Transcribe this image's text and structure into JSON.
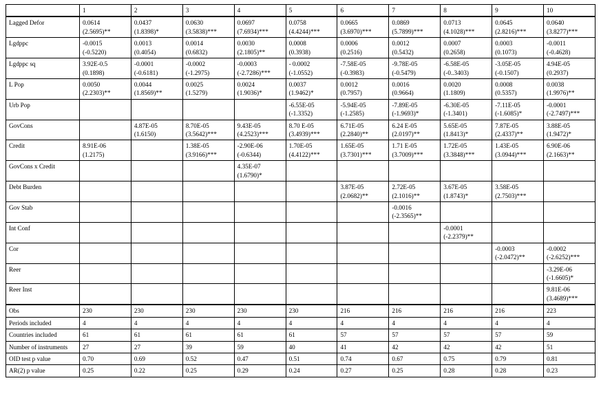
{
  "columns": [
    "1",
    "2",
    "3",
    "4",
    "5",
    "6",
    "7",
    "8",
    "9",
    "10"
  ],
  "variables": [
    {
      "name": "Lagged Defor",
      "cells": [
        {
          "v": "0.0614",
          "t": "(2.5695)**"
        },
        {
          "v": "0.0437",
          "t": "(1.8398)*"
        },
        {
          "v": "0.0630",
          "t": "(3.5838)***"
        },
        {
          "v": "0.0697",
          "t": "(7.6934)***"
        },
        {
          "v": "0.0758",
          "t": "(4.4244)***"
        },
        {
          "v": "0.0665",
          "t": "(3.6970)***"
        },
        {
          "v": "0.0869",
          "t": "(5.7899)***"
        },
        {
          "v": "0.0713",
          "t": "(4.1028)***"
        },
        {
          "v": "0.0645",
          "t": "(2.8216)***"
        },
        {
          "v": "0.0640",
          "t": "(3.8277)***"
        }
      ]
    },
    {
      "name": "Lgdppc",
      "cells": [
        {
          "v": "-0.0015",
          "t": "(-0.5220)"
        },
        {
          "v": "0.0013",
          "t": "(0.4054)"
        },
        {
          "v": "0.0014",
          "t": "(0.6832)"
        },
        {
          "v": "0.0030",
          "t": "(2.1805)**"
        },
        {
          "v": "0.0008",
          "t": "(0.3938)"
        },
        {
          "v": "0.0006",
          "t": "(0.2516)"
        },
        {
          "v": "0.0012",
          "t": "(0.5432)"
        },
        {
          "v": "0.0007",
          "t": "(0.2658)"
        },
        {
          "v": "0.0003",
          "t": "(0.1073)"
        },
        {
          "v": "-0.0011",
          "t": "(-0.4628)"
        }
      ]
    },
    {
      "name": "Lgdppc sq",
      "cells": [
        {
          "v": "3.92E-0.5",
          "t": "(0.1898)"
        },
        {
          "v": "-0.0001",
          "t": "(-0.6181)"
        },
        {
          "v": "-0.0002",
          "t": "(-1.2975)"
        },
        {
          "v": "-0.0003",
          "t": "(-2.7286)***"
        },
        {
          "v": "- 0.0002",
          "t": "(-1.0552)"
        },
        {
          "v": "-7.58E-05",
          "t": "(-0.3983)"
        },
        {
          "v": "-9.78E-05",
          "t": "(-0.5479)"
        },
        {
          "v": "-6.58E-05",
          "t": "(-0..3403)"
        },
        {
          "v": "-3.05E-05",
          "t": "(-0.1507)"
        },
        {
          "v": "4.94E-05",
          "t": "(0.2937)"
        }
      ]
    },
    {
      "name": "L Pop",
      "cells": [
        {
          "v": "0.0050",
          "t": "(2.2303)**"
        },
        {
          "v": "0.0044",
          "t": "(1.8569)**"
        },
        {
          "v": "0.0025",
          "t": "(1.5279)"
        },
        {
          "v": "0.0024",
          "t": "(1.9036)*"
        },
        {
          "v": "0.0037",
          "t": "(1.9462)*"
        },
        {
          "v": "0.0012",
          "t": "(0.7957)"
        },
        {
          "v": "0.0016",
          "t": "(0.9664)"
        },
        {
          "v": "0.0020",
          "t": "(1.1809)"
        },
        {
          "v": "0.0008",
          "t": "(0.5357)"
        },
        {
          "v": "0.0038",
          "t": "(1.9976)**"
        }
      ]
    },
    {
      "name": "Urb Pop",
      "cells": [
        null,
        null,
        null,
        null,
        {
          "v": "-6.55E-05",
          "t": "(-1.3352)"
        },
        {
          "v": "-5.94E-05",
          "t": "(-1.2585)"
        },
        {
          "v": "-7.89E-05",
          "t": "(-1.9693)*"
        },
        {
          "v": "-6.30E-05",
          "t": "(-1.3401)"
        },
        {
          "v": "-7.11E-05",
          "t": "(-1.6085)*"
        },
        {
          "v": "-0.0001",
          "t": "(-2.7497)***"
        }
      ]
    },
    {
      "name": "GovCons",
      "cells": [
        null,
        {
          "v": "4.87E-05",
          "t": "(1.6150)"
        },
        {
          "v": "8.70E-05",
          "t": "(3.5642)***"
        },
        {
          "v": "9.43E-05",
          "t": "(4.2523)***"
        },
        {
          "v": "8.70 E-05",
          "t": "(3.4939)***"
        },
        {
          "v": "6.71E-05",
          "t": "(2.2840)**"
        },
        {
          "v": "6.24 E-05",
          "t": "(2.0197)**"
        },
        {
          "v": "5.65E-05",
          "t": "(1.8413)*"
        },
        {
          "v": "7.87E-05",
          "t": "(2.4337)**"
        },
        {
          "v": "3.88E-05",
          "t": "(1.9472)*"
        }
      ]
    },
    {
      "name": "Credit",
      "cells": [
        {
          "v": "8.91E-06",
          "t": "(1.2175)"
        },
        null,
        {
          "v": "1.38E-05",
          "t": "(3.9166)***"
        },
        {
          "v": "-2.90E-06",
          "t": "(-0.6344)"
        },
        {
          "v": "1.70E-05",
          "t": "(4.4122)***"
        },
        {
          "v": "1.65E-05",
          "t": "(3.7301)***"
        },
        {
          "v": "1.71 E-05",
          "t": "(3.7009)***"
        },
        {
          "v": "1.72E-05",
          "t": "(3.3848)***"
        },
        {
          "v": "1.43E-05",
          "t": "(3.0944)***"
        },
        {
          "v": "6.90E-06",
          "t": "(2.1663)**"
        }
      ]
    },
    {
      "name": "GovCons x Credit",
      "cells": [
        null,
        null,
        null,
        {
          "v": "4.35E-07",
          "t": "(1.6790)*"
        },
        null,
        null,
        null,
        null,
        null,
        null
      ]
    },
    {
      "name": "Debt Burden",
      "cells": [
        null,
        null,
        null,
        null,
        null,
        {
          "v": "3.87E-05",
          "t": "(2.0682)**"
        },
        {
          "v": "2.72E-05",
          "t": "(2.1016)**"
        },
        {
          "v": "3.67E-05",
          "t": "(1.8743)*"
        },
        {
          "v": "3.58E-05",
          "t": "(2.7503)***"
        },
        null
      ]
    },
    {
      "name": "Gov Stab",
      "cells": [
        null,
        null,
        null,
        null,
        null,
        null,
        {
          "v": "-0.0016",
          "t": "(-2.3565)**"
        },
        null,
        null,
        null
      ]
    },
    {
      "name": "Int Conf",
      "cells": [
        null,
        null,
        null,
        null,
        null,
        null,
        null,
        {
          "v": "-0.0001",
          "t": "(-2.2379)**"
        },
        null,
        null
      ]
    },
    {
      "name": "Cor",
      "cells": [
        null,
        null,
        null,
        null,
        null,
        null,
        null,
        null,
        {
          "v": "-0.0003",
          "t": "(-2.0472)**"
        },
        {
          "v": "-0.0002",
          "t": "(-2.6252)***"
        }
      ]
    },
    {
      "name": "Reer",
      "cells": [
        null,
        null,
        null,
        null,
        null,
        null,
        null,
        null,
        null,
        {
          "v": "-3.29E-06",
          "t": "(-1.6605)*"
        }
      ]
    },
    {
      "name": "Reer Inst",
      "cells": [
        null,
        null,
        null,
        null,
        null,
        null,
        null,
        null,
        null,
        {
          "v": "9.81E-06",
          "t": "(3.4689)***"
        }
      ]
    }
  ],
  "summary": [
    {
      "name": "Obs",
      "vals": [
        "230",
        "230",
        "230",
        "230",
        "230",
        "216",
        "216",
        "216",
        "216",
        "223"
      ]
    },
    {
      "name": "Periods included",
      "vals": [
        "4",
        "4",
        "4",
        "4",
        "4",
        "4",
        "4",
        "4",
        "4",
        "4"
      ]
    },
    {
      "name": "Countries included",
      "vals": [
        "61",
        "61",
        "61",
        "61",
        "61",
        "57",
        "57",
        "57",
        "57",
        "59"
      ]
    },
    {
      "name": "Number of instruments",
      "vals": [
        "27",
        "27",
        "39",
        "59",
        "40",
        "41",
        "42",
        "42",
        "42",
        "51"
      ]
    },
    {
      "name": "OID test p value",
      "vals": [
        "0.70",
        "0.69",
        "0.52",
        "0.47",
        "0.51",
        "0.74",
        "0.67",
        "0.75",
        "0.79",
        "0.81"
      ]
    },
    {
      "name": "AR(2) p value",
      "vals": [
        "0.25",
        "0.22",
        "0.25",
        "0.29",
        "0.24",
        "0.27",
        "0.25",
        "0.28",
        "0.28",
        "0.23"
      ]
    }
  ]
}
